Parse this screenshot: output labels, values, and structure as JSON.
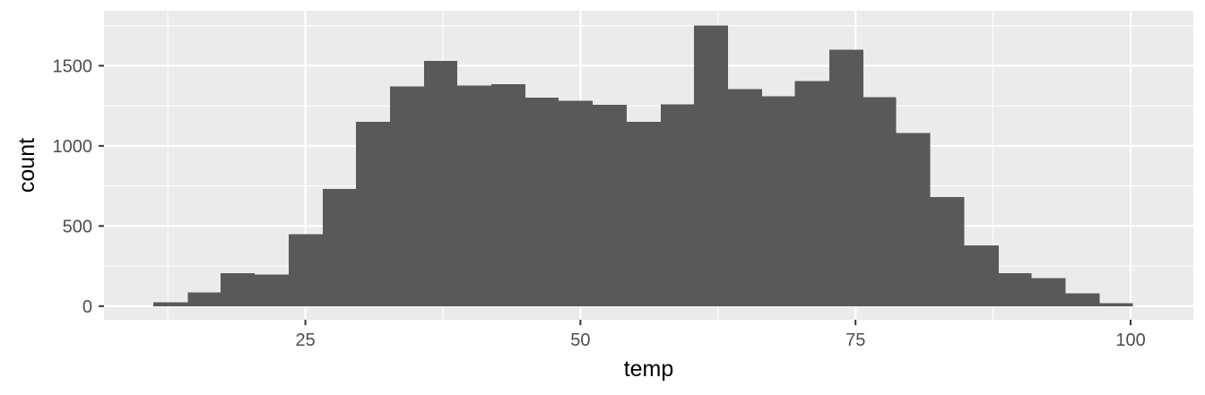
{
  "chart_data": {
    "type": "histogram",
    "xlabel": "temp",
    "ylabel": "count",
    "xlim": [
      6.7,
      105.7
    ],
    "ylim": [
      -85,
      1843
    ],
    "x_ticks": [
      25,
      50,
      75,
      100
    ],
    "x_tick_labels": [
      "25",
      "50",
      "75",
      "100"
    ],
    "y_ticks": [
      0,
      500,
      1000,
      1500
    ],
    "y_tick_labels": [
      "0",
      "500",
      "1000",
      "1500"
    ],
    "grid": true,
    "legend": "none",
    "bins": [
      {
        "x0": 11.2,
        "x1": 14.3,
        "count": 25
      },
      {
        "x0": 14.3,
        "x1": 17.3,
        "count": 85
      },
      {
        "x0": 17.3,
        "x1": 20.4,
        "count": 205
      },
      {
        "x0": 20.4,
        "x1": 23.5,
        "count": 198
      },
      {
        "x0": 23.5,
        "x1": 26.6,
        "count": 450
      },
      {
        "x0": 26.6,
        "x1": 29.6,
        "count": 730
      },
      {
        "x0": 29.6,
        "x1": 32.7,
        "count": 1150
      },
      {
        "x0": 32.7,
        "x1": 35.8,
        "count": 1370
      },
      {
        "x0": 35.8,
        "x1": 38.8,
        "count": 1530
      },
      {
        "x0": 38.8,
        "x1": 41.9,
        "count": 1375
      },
      {
        "x0": 41.9,
        "x1": 45.0,
        "count": 1385
      },
      {
        "x0": 45.0,
        "x1": 48.0,
        "count": 1300
      },
      {
        "x0": 48.0,
        "x1": 51.1,
        "count": 1280
      },
      {
        "x0": 51.1,
        "x1": 54.2,
        "count": 1255
      },
      {
        "x0": 54.2,
        "x1": 57.3,
        "count": 1150
      },
      {
        "x0": 57.3,
        "x1": 60.3,
        "count": 1260
      },
      {
        "x0": 60.3,
        "x1": 63.4,
        "count": 1750
      },
      {
        "x0": 63.4,
        "x1": 66.5,
        "count": 1355
      },
      {
        "x0": 66.5,
        "x1": 69.5,
        "count": 1310
      },
      {
        "x0": 69.5,
        "x1": 72.6,
        "count": 1405
      },
      {
        "x0": 72.6,
        "x1": 75.7,
        "count": 1600
      },
      {
        "x0": 75.7,
        "x1": 78.7,
        "count": 1305
      },
      {
        "x0": 78.7,
        "x1": 81.8,
        "count": 1080
      },
      {
        "x0": 81.8,
        "x1": 84.9,
        "count": 680
      },
      {
        "x0": 84.9,
        "x1": 88.0,
        "count": 380
      },
      {
        "x0": 88.0,
        "x1": 91.0,
        "count": 205
      },
      {
        "x0": 91.0,
        "x1": 94.1,
        "count": 175
      },
      {
        "x0": 94.1,
        "x1": 97.2,
        "count": 80
      },
      {
        "x0": 97.2,
        "x1": 100.2,
        "count": 18
      }
    ]
  },
  "colors": {
    "panel_background": "#ebebeb",
    "grid_major": "#ffffff",
    "bar_fill": "#595959",
    "tick_text": "#4d4d4d",
    "tick_mark": "#333333",
    "axis_title": "#000000"
  }
}
